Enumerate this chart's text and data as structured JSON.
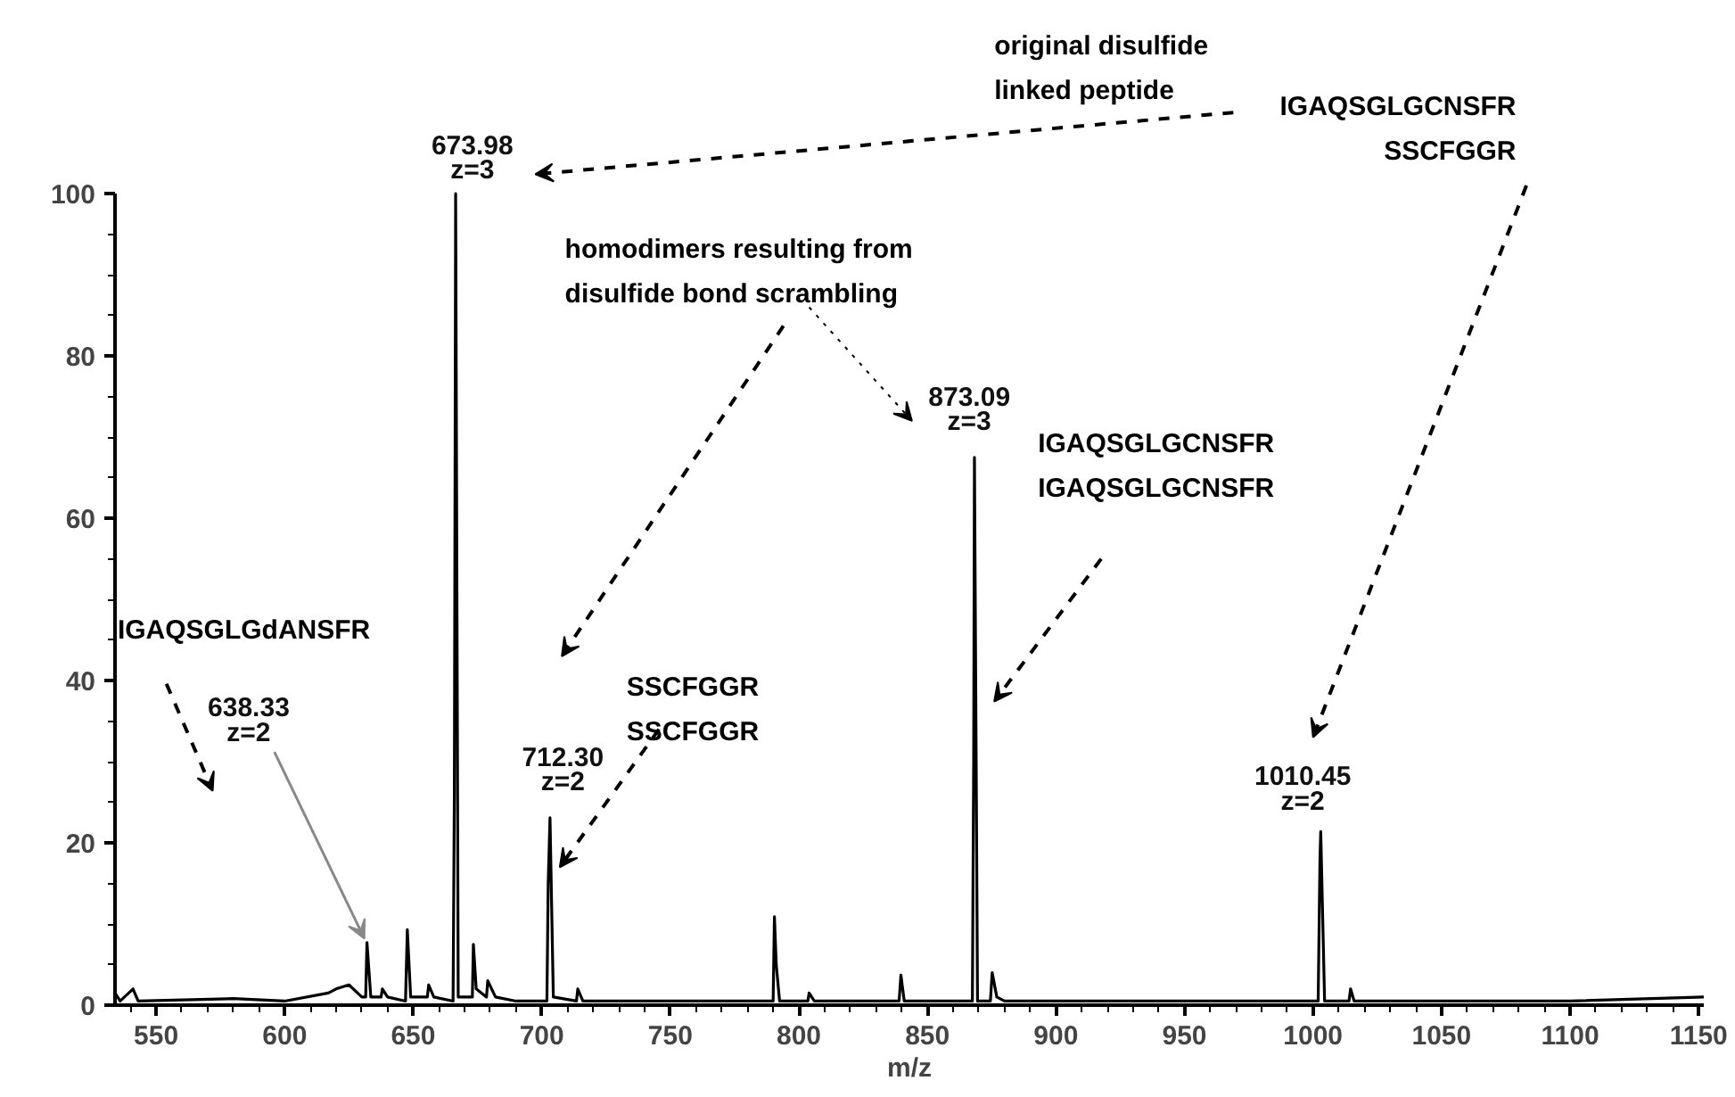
{
  "chart_data": {
    "type": "line",
    "xlabel": "m/z",
    "x": [
      534,
      536,
      541,
      543,
      580,
      600,
      617,
      620,
      625,
      630,
      631.5,
      632,
      633.5,
      637.5,
      638,
      640,
      647,
      647.7,
      649,
      655.5,
      656,
      658,
      665.5,
      666,
      666.5,
      667.5,
      673,
      673.4,
      674.5,
      678.5,
      679,
      682,
      690,
      702,
      702.5,
      703.2,
      704.5,
      713.5,
      714,
      716,
      750,
      790,
      790.5,
      791.2,
      792.5,
      803.5,
      804,
      806,
      839,
      839.7,
      841,
      867.5,
      868,
      868.3,
      869.5,
      874.5,
      875.2,
      877,
      880,
      950,
      1002,
      1002.7,
      1003,
      1004.5,
      1014,
      1014.6,
      1016,
      1100,
      1152
    ],
    "series": [
      {
        "color": "#000000",
        "values": [
          1.5,
          0.5,
          2,
          0.5,
          0.8,
          0.5,
          1.5,
          2,
          2.5,
          1,
          1,
          7.7,
          1,
          1,
          2,
          1,
          0.5,
          9.3,
          1,
          1,
          2.5,
          1,
          0.5,
          26,
          100,
          1,
          1,
          7.5,
          2,
          1,
          3,
          1,
          0.5,
          0.5,
          15,
          23.1,
          1,
          0.5,
          2,
          0.5,
          0.5,
          0.5,
          10.9,
          5,
          0.5,
          0.5,
          1.5,
          0.5,
          0.5,
          3.7,
          0.5,
          0.5,
          30,
          67.5,
          0.5,
          0.5,
          4,
          1,
          0.5,
          0.5,
          0.5,
          18,
          21.4,
          0.5,
          0.5,
          2,
          0.5,
          0.5,
          1
        ]
      }
    ],
    "xlim": [
      534,
      1152
    ],
    "xticks": [
      550,
      600,
      650,
      700,
      750,
      800,
      850,
      900,
      950,
      1000,
      1050,
      1100,
      1150
    ],
    "ylim": [
      0,
      100
    ],
    "yticks": [
      0,
      20,
      40,
      60,
      80,
      100
    ],
    "marker": "none",
    "line_style": "solid",
    "grid": false,
    "annotations": [
      "original disulfide\nlinked peptide",
      "IGAQSGLGCNSFR\nSSCFGGR",
      "homodimers resulting from\ndisulfide bond scrambling",
      "IGAQSGLGCNSFR\nIGAQSGLGCNSFR",
      "SSCFGGR\nSSCFGGR",
      "IGAQSGLGdANSFR",
      {
        "text": "673.98\nz=3",
        "x": 666.5,
        "y": 100
      },
      {
        "text": "712.30\nz=2",
        "x": 703.2,
        "y": 23.1
      },
      {
        "text": "638.33\nz=2",
        "x": 632,
        "y": 7.7
      },
      {
        "text": "873.09\nz=3",
        "x": 868.3,
        "y": 67.5
      },
      {
        "text": "1010.45\nz=2",
        "x": 1003,
        "y": 21.4
      }
    ]
  }
}
